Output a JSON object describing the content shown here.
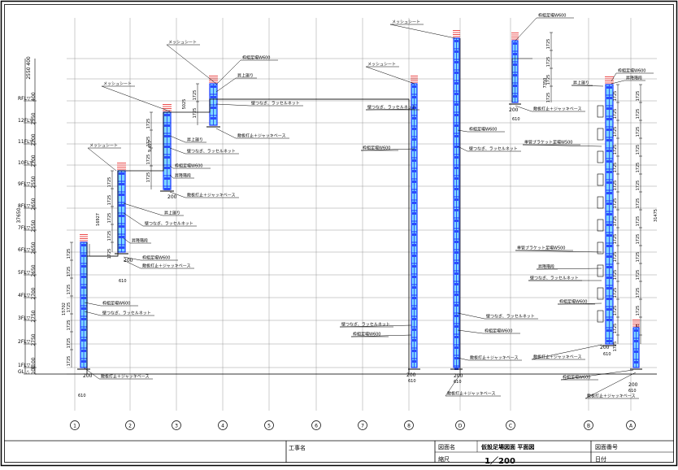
{
  "drawing": {
    "colors": {
      "grid": "#9a9a9a",
      "scaffold_frame": "#1a35ff",
      "scaffold_fill": "#7cd6ff",
      "rails": "#e82020",
      "line": "#000000"
    },
    "total_height_label": "37650",
    "right_total_label": "31475",
    "overall_labels": [
      "15702",
      "16927",
      "9,427",
      "5025",
      "7350",
      "2550"
    ],
    "floors": [
      "RFL▽",
      "12FL▽",
      "11FL▽",
      "10FL▽",
      "9FL▽",
      "8FL▽",
      "7FL▽",
      "6FL▽",
      "5FL▽",
      "4FL▽",
      "3FL▽",
      "2FL▽",
      "1FL▽",
      "GL △"
    ],
    "floor_dims": [
      "400",
      "2550",
      "2200",
      "2700",
      "2550",
      "2650",
      "2550",
      "2650",
      "2650",
      "2700",
      "2750",
      "2750",
      "3100",
      "100"
    ],
    "axes": [
      "1",
      "2",
      "3",
      "4",
      "5",
      "6",
      "7",
      "8",
      "D",
      "C",
      "B",
      "A"
    ],
    "unit_dim": "1725",
    "base_width": "200",
    "base_offset": "610",
    "callouts": [
      "メッシュシート",
      "枠組足場W600",
      "昇降階段",
      "壁つなぎ、ラッセルネット",
      "敷板打止＋ジャッキベース",
      "単管ブラケット足場W500",
      "昇上廻り"
    ]
  },
  "title_block": {
    "field_kouji": "工事名",
    "field_zumen": "図面名",
    "drawing_name": "仮設足場図面 平面図",
    "field_zuban": "図面番号",
    "field_shakudo": "縮尺",
    "scale": "1／200",
    "field_hizuke": "日付"
  }
}
